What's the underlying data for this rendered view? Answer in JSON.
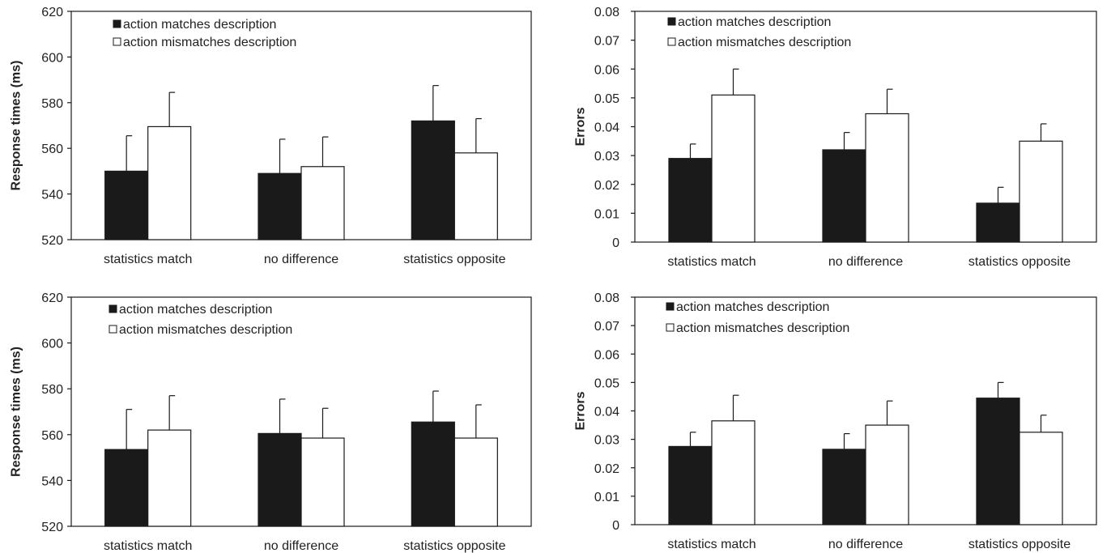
{
  "legend": {
    "match": "action matches description",
    "mismatch": "action mismatches description"
  },
  "colors": {
    "match_fill": "#1a1a1a",
    "mismatch_fill": "#ffffff",
    "stroke": "#1a1a1a"
  },
  "chart_data": [
    {
      "type": "bar",
      "title": "",
      "xlabel": "",
      "ylabel": "Response times (ms)",
      "ylim": [
        520,
        620
      ],
      "yticks": [
        "520",
        "540",
        "560",
        "580",
        "600",
        "620"
      ],
      "legend_position": "top-left",
      "categories": [
        "statistics match",
        "no difference",
        "statistics opposite"
      ],
      "series": [
        {
          "name": "action matches description",
          "values": [
            550,
            549,
            572
          ],
          "error": [
            15.5,
            15,
            15.5
          ]
        },
        {
          "name": "action mismatches description",
          "values": [
            569.5,
            552,
            558
          ],
          "error": [
            15,
            13,
            15
          ]
        }
      ]
    },
    {
      "type": "bar",
      "title": "",
      "xlabel": "",
      "ylabel": "Errors",
      "ylim": [
        0,
        0.08
      ],
      "yticks": [
        "0",
        "0.01",
        "0.02",
        "0.03",
        "0.04",
        "0.05",
        "0.06",
        "0.07",
        "0.08"
      ],
      "legend_position": "top-left",
      "categories": [
        "statistics match",
        "no difference",
        "statistics opposite"
      ],
      "series": [
        {
          "name": "action matches description",
          "values": [
            0.029,
            0.032,
            0.0135
          ],
          "error": [
            0.005,
            0.006,
            0.0055
          ]
        },
        {
          "name": "action mismatches description",
          "values": [
            0.051,
            0.0445,
            0.035
          ],
          "error": [
            0.009,
            0.0085,
            0.006
          ]
        }
      ]
    },
    {
      "type": "bar",
      "title": "",
      "xlabel": "",
      "ylabel": "Response times (ms)",
      "ylim": [
        520,
        620
      ],
      "yticks": [
        "520",
        "540",
        "560",
        "580",
        "600",
        "620"
      ],
      "legend_position": "top-left",
      "categories": [
        "statistics match",
        "no difference",
        "statistics opposite"
      ],
      "series": [
        {
          "name": "action matches description",
          "values": [
            553.5,
            560.5,
            565.5
          ],
          "error": [
            17.5,
            15,
            13.5
          ]
        },
        {
          "name": "action mismatches description",
          "values": [
            562,
            558.5,
            558.5
          ],
          "error": [
            15,
            13,
            14.5
          ]
        }
      ]
    },
    {
      "type": "bar",
      "title": "",
      "xlabel": "",
      "ylabel": "Errors",
      "ylim": [
        0,
        0.08
      ],
      "yticks": [
        "0",
        "0.01",
        "0.02",
        "0.03",
        "0.04",
        "0.05",
        "0.06",
        "0.07",
        "0.08"
      ],
      "legend_position": "top-left",
      "categories": [
        "statistics match",
        "no difference",
        "statistics opposite"
      ],
      "series": [
        {
          "name": "action matches description",
          "values": [
            0.0275,
            0.0265,
            0.0445
          ],
          "error": [
            0.005,
            0.0055,
            0.0055
          ]
        },
        {
          "name": "action mismatches description",
          "values": [
            0.0365,
            0.035,
            0.0325
          ],
          "error": [
            0.009,
            0.0085,
            0.006
          ]
        }
      ]
    }
  ]
}
